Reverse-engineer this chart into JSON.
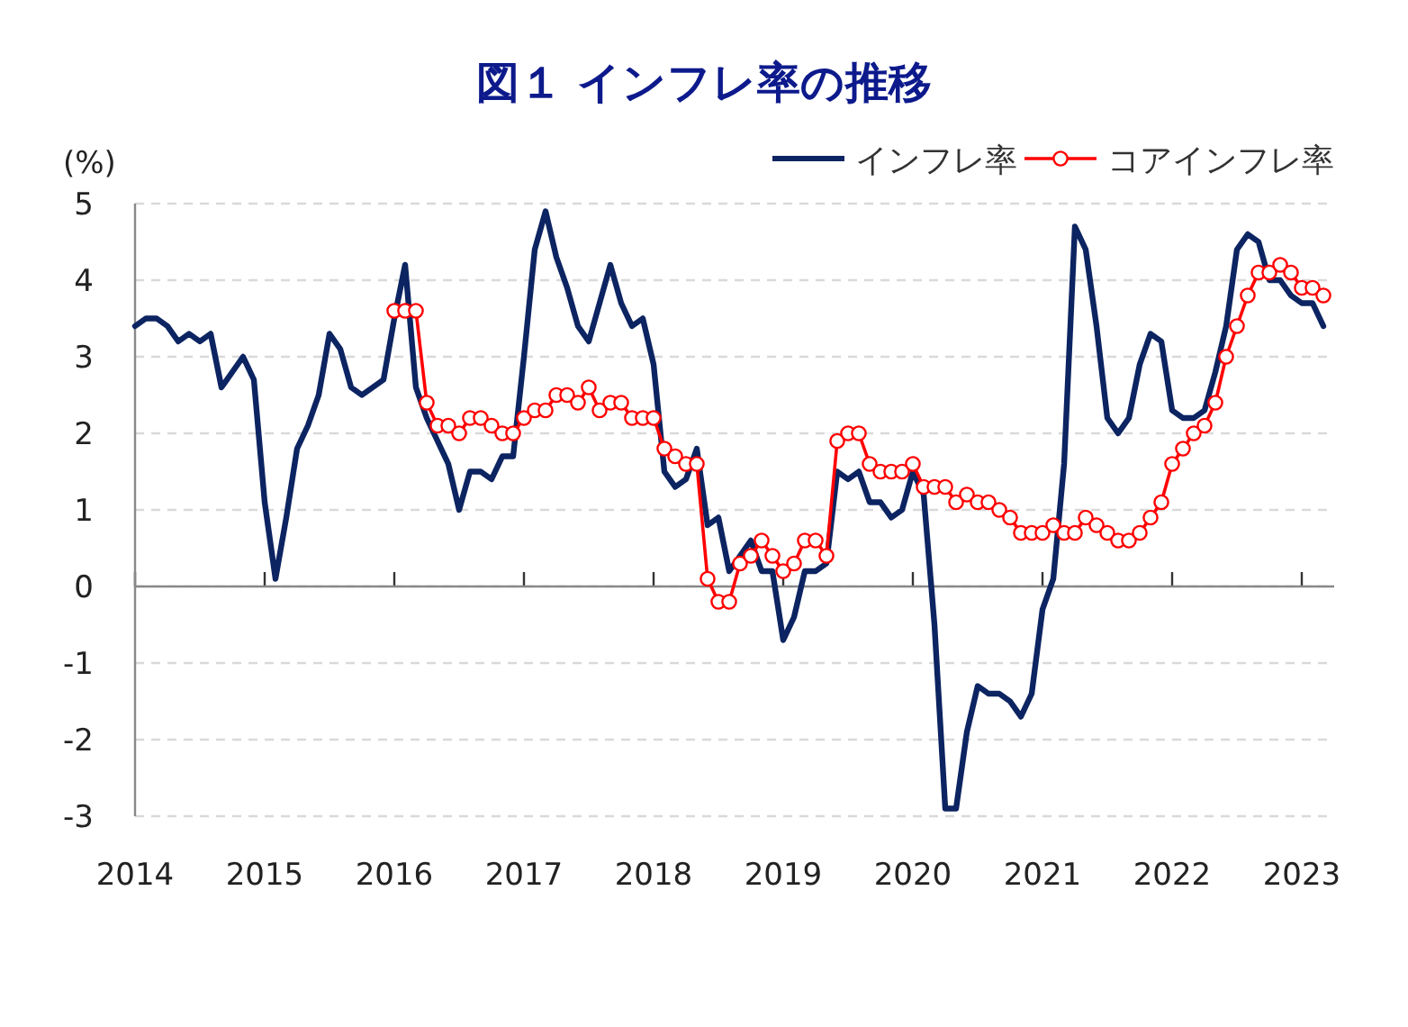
{
  "chart_data": {
    "type": "line",
    "title": "図１ インフレ率の推移",
    "ylabel": "(%)",
    "x": [
      "2014-01",
      "2014-02",
      "2014-03",
      "2014-04",
      "2014-05",
      "2014-06",
      "2014-07",
      "2014-08",
      "2014-09",
      "2014-10",
      "2014-11",
      "2014-12",
      "2015-01",
      "2015-02",
      "2015-03",
      "2015-04",
      "2015-05",
      "2015-06",
      "2015-07",
      "2015-08",
      "2015-09",
      "2015-10",
      "2015-11",
      "2015-12",
      "2016-01",
      "2016-02",
      "2016-03",
      "2016-04",
      "2016-05",
      "2016-06",
      "2016-07",
      "2016-08",
      "2016-09",
      "2016-10",
      "2016-11",
      "2016-12",
      "2017-01",
      "2017-02",
      "2017-03",
      "2017-04",
      "2017-05",
      "2017-06",
      "2017-07",
      "2017-08",
      "2017-09",
      "2017-10",
      "2017-11",
      "2017-12",
      "2018-01",
      "2018-02",
      "2018-03",
      "2018-04",
      "2018-05",
      "2018-06",
      "2018-07",
      "2018-08",
      "2018-09",
      "2018-10",
      "2018-11",
      "2018-12",
      "2019-01",
      "2019-02",
      "2019-03",
      "2019-04",
      "2019-05",
      "2019-06",
      "2019-07",
      "2019-08",
      "2019-09",
      "2019-10",
      "2019-11",
      "2019-12",
      "2020-01",
      "2020-02",
      "2020-03",
      "2020-04",
      "2020-05",
      "2020-06",
      "2020-07",
      "2020-08",
      "2020-09",
      "2020-10",
      "2020-11",
      "2020-12",
      "2021-01",
      "2021-02",
      "2021-03",
      "2021-04",
      "2021-05",
      "2021-06",
      "2021-07",
      "2021-08",
      "2021-09",
      "2021-10",
      "2021-11",
      "2021-12",
      "2022-01",
      "2022-02",
      "2022-03",
      "2022-04",
      "2022-05",
      "2022-06",
      "2022-07",
      "2022-08",
      "2022-09",
      "2022-10",
      "2022-11",
      "2022-12",
      "2023-01",
      "2023-02",
      "2023-03"
    ],
    "series": [
      {
        "name": "インフレ率",
        "color": "#0c2461",
        "marker": "none",
        "values": [
          3.4,
          3.5,
          3.5,
          3.4,
          3.2,
          3.3,
          3.2,
          3.3,
          2.6,
          2.8,
          3.0,
          2.7,
          1.1,
          0.1,
          0.9,
          1.8,
          2.1,
          2.5,
          3.3,
          3.1,
          2.6,
          2.5,
          2.6,
          2.7,
          3.5,
          4.2,
          2.6,
          2.2,
          1.9,
          1.6,
          1.0,
          1.5,
          1.5,
          1.4,
          1.7,
          1.7,
          3.0,
          4.4,
          4.9,
          4.3,
          3.9,
          3.4,
          3.2,
          3.7,
          4.2,
          3.7,
          3.4,
          3.5,
          2.9,
          1.5,
          1.3,
          1.4,
          1.8,
          0.8,
          0.9,
          0.2,
          0.4,
          0.6,
          0.2,
          0.2,
          -0.7,
          -0.4,
          0.2,
          0.2,
          0.3,
          1.5,
          1.4,
          1.5,
          1.1,
          1.1,
          0.9,
          1.0,
          1.5,
          1.2,
          -0.5,
          -2.9,
          -2.9,
          -1.9,
          -1.3,
          -1.4,
          -1.4,
          -1.5,
          -1.7,
          -1.4,
          -0.3,
          0.1,
          1.6,
          4.7,
          4.4,
          3.4,
          2.2,
          2.0,
          2.2,
          2.9,
          3.3,
          3.2,
          2.3,
          2.2,
          2.2,
          2.3,
          2.8,
          3.4,
          4.4,
          4.6,
          4.5,
          4.0,
          4.0,
          3.8,
          3.7,
          3.7,
          3.4
        ]
      },
      {
        "name": "コアインフレ率",
        "color": "#ff0000",
        "marker": "circle",
        "values": [
          null,
          null,
          null,
          null,
          null,
          null,
          null,
          null,
          null,
          null,
          null,
          null,
          null,
          null,
          null,
          null,
          null,
          null,
          null,
          null,
          null,
          null,
          null,
          null,
          3.6,
          3.6,
          3.6,
          2.4,
          2.1,
          2.1,
          2.0,
          2.2,
          2.2,
          2.1,
          2.0,
          2.0,
          2.2,
          2.3,
          2.3,
          2.5,
          2.5,
          2.4,
          2.6,
          2.3,
          2.4,
          2.4,
          2.2,
          2.2,
          2.2,
          1.8,
          1.7,
          1.6,
          1.6,
          0.1,
          -0.2,
          -0.2,
          0.3,
          0.4,
          0.6,
          0.4,
          0.2,
          0.3,
          0.6,
          0.6,
          0.4,
          1.9,
          2.0,
          2.0,
          1.6,
          1.5,
          1.5,
          1.5,
          1.6,
          1.3,
          1.3,
          1.3,
          1.1,
          1.2,
          1.1,
          1.1,
          1.0,
          0.9,
          0.7,
          0.7,
          0.7,
          0.8,
          0.7,
          0.7,
          0.9,
          0.8,
          0.7,
          0.6,
          0.6,
          0.7,
          0.9,
          1.1,
          1.6,
          1.8,
          2.0,
          2.1,
          2.4,
          3.0,
          3.4,
          3.8,
          4.1,
          4.1,
          4.2,
          4.1,
          3.9,
          3.9,
          3.8
        ]
      }
    ],
    "xlim": [
      "2014-01",
      "2023-04"
    ],
    "xticks": [
      {
        "value": "2014-01",
        "label": "2014"
      },
      {
        "value": "2015-01",
        "label": "2015"
      },
      {
        "value": "2016-01",
        "label": "2016"
      },
      {
        "value": "2017-01",
        "label": "2017"
      },
      {
        "value": "2018-01",
        "label": "2018"
      },
      {
        "value": "2019-01",
        "label": "2019"
      },
      {
        "value": "2020-01",
        "label": "2020"
      },
      {
        "value": "2021-01",
        "label": "2021"
      },
      {
        "value": "2022-01",
        "label": "2022"
      },
      {
        "value": "2023-01",
        "label": "2023"
      }
    ],
    "ylim": [
      -3,
      5
    ],
    "yticks": [
      -3,
      -2,
      -1,
      0,
      1,
      2,
      3,
      4,
      5
    ],
    "grid": "y",
    "legend": "top right"
  }
}
